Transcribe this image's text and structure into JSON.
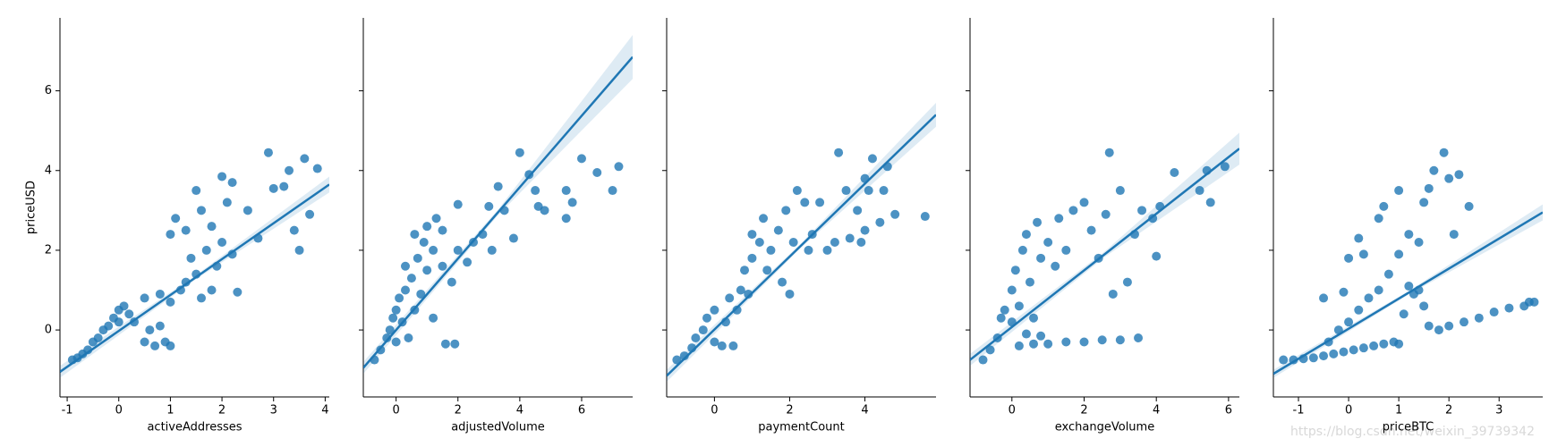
{
  "chart_data": [
    {
      "type": "scatter",
      "x_label": "activeAddresses",
      "y_label": "priceUSD",
      "color": "#1f77b4",
      "ytick_labels": true,
      "xlim": [
        -1.14,
        4.08
      ],
      "ylim": [
        -1.68,
        7.83
      ],
      "xticks": [
        -1,
        0,
        1,
        2,
        3,
        4
      ],
      "yticks": [
        0,
        2,
        4,
        6
      ],
      "x": [
        -0.9,
        -0.8,
        -0.7,
        -0.6,
        -0.5,
        -0.4,
        -0.3,
        -0.2,
        -0.1,
        0,
        0.1,
        0.2,
        0,
        0.3,
        0.5,
        0.7,
        0.9,
        0.6,
        0.8,
        1.0,
        0.5,
        0.8,
        1.0,
        1.2,
        1.3,
        1.5,
        1.6,
        1.8,
        1.4,
        1.7,
        1.9,
        2.0,
        2.2,
        1.0,
        1.1,
        1.3,
        1.6,
        1.8,
        2.1,
        2.2,
        2.3,
        2.5,
        2.7,
        2.9,
        3.0,
        3.2,
        3.3,
        3.4,
        3.6,
        3.7,
        3.85,
        3.5,
        1.5,
        2.0
      ],
      "y": [
        -0.75,
        -0.7,
        -0.6,
        -0.5,
        -0.3,
        -0.2,
        0,
        0.1,
        0.3,
        0.5,
        0.6,
        0.4,
        0.2,
        0.2,
        -0.3,
        -0.4,
        -0.3,
        0,
        0.1,
        -0.4,
        0.8,
        0.9,
        0.7,
        1.0,
        1.2,
        1.4,
        0.8,
        1.0,
        1.8,
        2.0,
        1.6,
        2.2,
        1.9,
        2.4,
        2.8,
        2.5,
        3.0,
        2.6,
        3.2,
        3.7,
        0.95,
        3.0,
        2.3,
        4.45,
        3.55,
        3.6,
        4.0,
        2.5,
        4.3,
        2.9,
        4.05,
        2.0,
        3.5,
        3.85
      ],
      "regression": {
        "x": [
          -1.14,
          1.47,
          4.08
        ],
        "y": [
          -1.05,
          1.3,
          3.65
        ],
        "ci_low": [
          -1.2,
          1.25,
          3.45
        ],
        "ci_high": [
          -0.9,
          1.35,
          3.85
        ]
      }
    },
    {
      "type": "scatter",
      "x_label": "adjustedVolume",
      "color": "#1f77b4",
      "ytick_labels": false,
      "xlim": [
        -1.06,
        7.65
      ],
      "ylim": [
        -1.68,
        7.83
      ],
      "xticks": [
        0,
        2,
        4,
        6
      ],
      "yticks": [
        0,
        2,
        4,
        6
      ],
      "x": [
        -0.7,
        -0.5,
        -0.3,
        -0.2,
        -0.1,
        0,
        0,
        0.1,
        0.2,
        0.3,
        0.4,
        0.5,
        0.6,
        0.7,
        0.8,
        0.9,
        1.0,
        1.0,
        1.2,
        1.3,
        1.5,
        1.5,
        1.6,
        1.9,
        1.8,
        2.0,
        2.0,
        2.3,
        2.5,
        2.8,
        3.0,
        3.1,
        3.3,
        3.5,
        3.8,
        4.0,
        4.3,
        4.5,
        4.6,
        4.8,
        5.5,
        5.5,
        6.0,
        6.5,
        7.0,
        7.2,
        5.7,
        0.3,
        0.6,
        1.2
      ],
      "y": [
        -0.75,
        -0.5,
        -0.2,
        0,
        0.3,
        0.5,
        -0.3,
        0.8,
        0.2,
        1.0,
        -0.2,
        1.3,
        0.5,
        1.8,
        0.9,
        2.2,
        1.5,
        2.6,
        2.0,
        2.8,
        1.6,
        2.5,
        -0.35,
        -0.35,
        1.2,
        2.0,
        3.15,
        1.7,
        2.2,
        2.4,
        3.1,
        2.0,
        3.6,
        3.0,
        2.3,
        4.45,
        3.9,
        3.5,
        3.1,
        3.0,
        3.5,
        2.8,
        4.3,
        3.95,
        3.5,
        4.1,
        3.2,
        1.6,
        2.4,
        0.3
      ],
      "regression": {
        "x": [
          -1.06,
          3.295,
          7.65
        ],
        "y": [
          -0.95,
          2.95,
          6.85
        ],
        "ci_low": [
          -1.1,
          2.88,
          6.3
        ],
        "ci_high": [
          -0.8,
          3.02,
          7.4
        ]
      }
    },
    {
      "type": "scatter",
      "x_label": "paymentCount",
      "color": "#1f77b4",
      "ytick_labels": false,
      "xlim": [
        -1.27,
        5.89
      ],
      "ylim": [
        -1.68,
        7.83
      ],
      "xticks": [
        0,
        2,
        4
      ],
      "yticks": [
        0,
        2,
        4,
        6
      ],
      "x": [
        -1.0,
        -0.8,
        -0.6,
        -0.5,
        -0.3,
        -0.2,
        0,
        0,
        0.2,
        0.3,
        0.4,
        0.5,
        0.6,
        0.7,
        0.8,
        0.9,
        1.0,
        1.0,
        1.2,
        1.3,
        1.4,
        1.5,
        1.7,
        1.8,
        1.9,
        2.0,
        2.1,
        2.2,
        2.4,
        2.5,
        2.6,
        2.8,
        3.0,
        3.2,
        3.3,
        3.5,
        3.6,
        3.8,
        4.0,
        4.1,
        4.2,
        4.4,
        4.5,
        4.6,
        4.8,
        5.6,
        4.0,
        3.9
      ],
      "y": [
        -0.75,
        -0.65,
        -0.45,
        -0.2,
        0,
        0.3,
        0.5,
        -0.3,
        -0.4,
        0.2,
        0.8,
        -0.4,
        0.5,
        1.0,
        1.5,
        0.9,
        1.8,
        2.4,
        2.2,
        2.8,
        1.5,
        2.0,
        2.5,
        1.2,
        3.0,
        0.9,
        2.2,
        3.5,
        3.2,
        2.0,
        2.4,
        3.2,
        2.0,
        2.2,
        4.45,
        3.5,
        2.3,
        3.0,
        3.8,
        3.5,
        4.3,
        2.7,
        3.5,
        4.1,
        2.9,
        2.85,
        2.5,
        2.2
      ],
      "regression": {
        "x": [
          -1.27,
          2.31,
          5.89
        ],
        "y": [
          -1.15,
          2.125,
          5.4
        ],
        "ci_low": [
          -1.3,
          2.07,
          5.1
        ],
        "ci_high": [
          -1.0,
          2.18,
          5.7
        ]
      }
    },
    {
      "type": "scatter",
      "x_label": "exchangeVolume",
      "color": "#1f77b4",
      "ytick_labels": false,
      "xlim": [
        -1.16,
        6.3
      ],
      "ylim": [
        -1.68,
        7.83
      ],
      "xticks": [
        0,
        2,
        4,
        6
      ],
      "yticks": [
        0,
        2,
        4,
        6
      ],
      "x": [
        -0.8,
        -0.6,
        -0.4,
        -0.3,
        -0.2,
        0,
        0,
        0.1,
        0.2,
        0.3,
        0.4,
        0.5,
        0.6,
        0.7,
        0.8,
        1.0,
        1.2,
        1.3,
        1.5,
        1.7,
        2.0,
        2.2,
        2.4,
        2.6,
        2.7,
        3.0,
        3.2,
        3.4,
        3.6,
        3.9,
        4.0,
        4.1,
        4.5,
        5.2,
        5.4,
        5.5,
        5.9,
        0.2,
        0.6,
        1.0,
        1.5,
        2.0,
        2.5,
        3.0,
        3.5,
        0.4,
        0.8,
        2.8
      ],
      "y": [
        -0.75,
        -0.5,
        -0.2,
        0.3,
        0.5,
        0.2,
        1.0,
        1.5,
        0.6,
        2.0,
        2.4,
        1.2,
        0.3,
        2.7,
        1.8,
        2.2,
        1.6,
        2.8,
        2.0,
        3.0,
        3.2,
        2.5,
        1.8,
        2.9,
        4.45,
        3.5,
        1.2,
        2.4,
        3.0,
        2.8,
        1.85,
        3.1,
        3.95,
        3.5,
        4.0,
        3.2,
        4.1,
        -0.4,
        -0.35,
        -0.35,
        -0.3,
        -0.3,
        -0.25,
        -0.25,
        -0.2,
        -0.1,
        -0.15,
        0.9
      ],
      "regression": {
        "x": [
          -1.16,
          2.57,
          6.3
        ],
        "y": [
          -0.75,
          1.9,
          4.55
        ],
        "ci_low": [
          -0.9,
          1.83,
          4.15
        ],
        "ci_high": [
          -0.6,
          1.97,
          4.95
        ]
      }
    },
    {
      "type": "scatter",
      "x_label": "priceBTC",
      "color": "#1f77b4",
      "ytick_labels": false,
      "xlim": [
        -1.5,
        3.87
      ],
      "ylim": [
        -1.68,
        7.83
      ],
      "xticks": [
        -1,
        0,
        1,
        2,
        3
      ],
      "yticks": [
        0,
        2,
        4,
        6
      ],
      "x": [
        -1.3,
        -1.1,
        -0.9,
        -0.7,
        -0.5,
        -0.3,
        -0.1,
        0.1,
        0.3,
        0.5,
        0.7,
        0.9,
        1.0,
        1.1,
        1.3,
        1.5,
        1.6,
        1.8,
        2.0,
        2.3,
        2.6,
        2.9,
        3.2,
        3.5,
        3.6,
        3.7,
        1.2,
        1.4,
        -0.4,
        -0.2,
        0,
        0.2,
        0.4,
        0.6,
        0.8,
        1.0,
        1.2,
        1.4,
        1.5,
        1.6,
        1.7,
        1.9,
        2.0,
        2.1,
        2.2,
        2.4,
        -0.1,
        0.3,
        0.2,
        0.0,
        0.6,
        0.7,
        1.0,
        -0.5
      ],
      "y": [
        -0.75,
        -0.75,
        -0.72,
        -0.7,
        -0.65,
        -0.6,
        -0.55,
        -0.5,
        -0.45,
        -0.4,
        -0.35,
        -0.3,
        -0.35,
        0.4,
        0.9,
        0.6,
        0.1,
        0.0,
        0.1,
        0.2,
        0.3,
        0.45,
        0.55,
        0.6,
        0.7,
        0.7,
        1.1,
        1.0,
        -0.3,
        0,
        0.2,
        0.5,
        0.8,
        1.0,
        1.4,
        1.9,
        2.4,
        2.2,
        3.2,
        3.55,
        4.0,
        4.45,
        3.8,
        2.4,
        3.9,
        3.1,
        0.95,
        1.9,
        2.3,
        1.8,
        2.8,
        3.1,
        3.5,
        0.8
      ],
      "regression": {
        "x": [
          -1.5,
          1.185,
          3.87
        ],
        "y": [
          -1.1,
          0.925,
          2.95
        ],
        "ci_low": [
          -1.2,
          0.88,
          2.75
        ],
        "ci_high": [
          -1.0,
          0.97,
          3.15
        ]
      }
    }
  ],
  "watermark": "https://blog.csdn.net/weixin_39739342"
}
